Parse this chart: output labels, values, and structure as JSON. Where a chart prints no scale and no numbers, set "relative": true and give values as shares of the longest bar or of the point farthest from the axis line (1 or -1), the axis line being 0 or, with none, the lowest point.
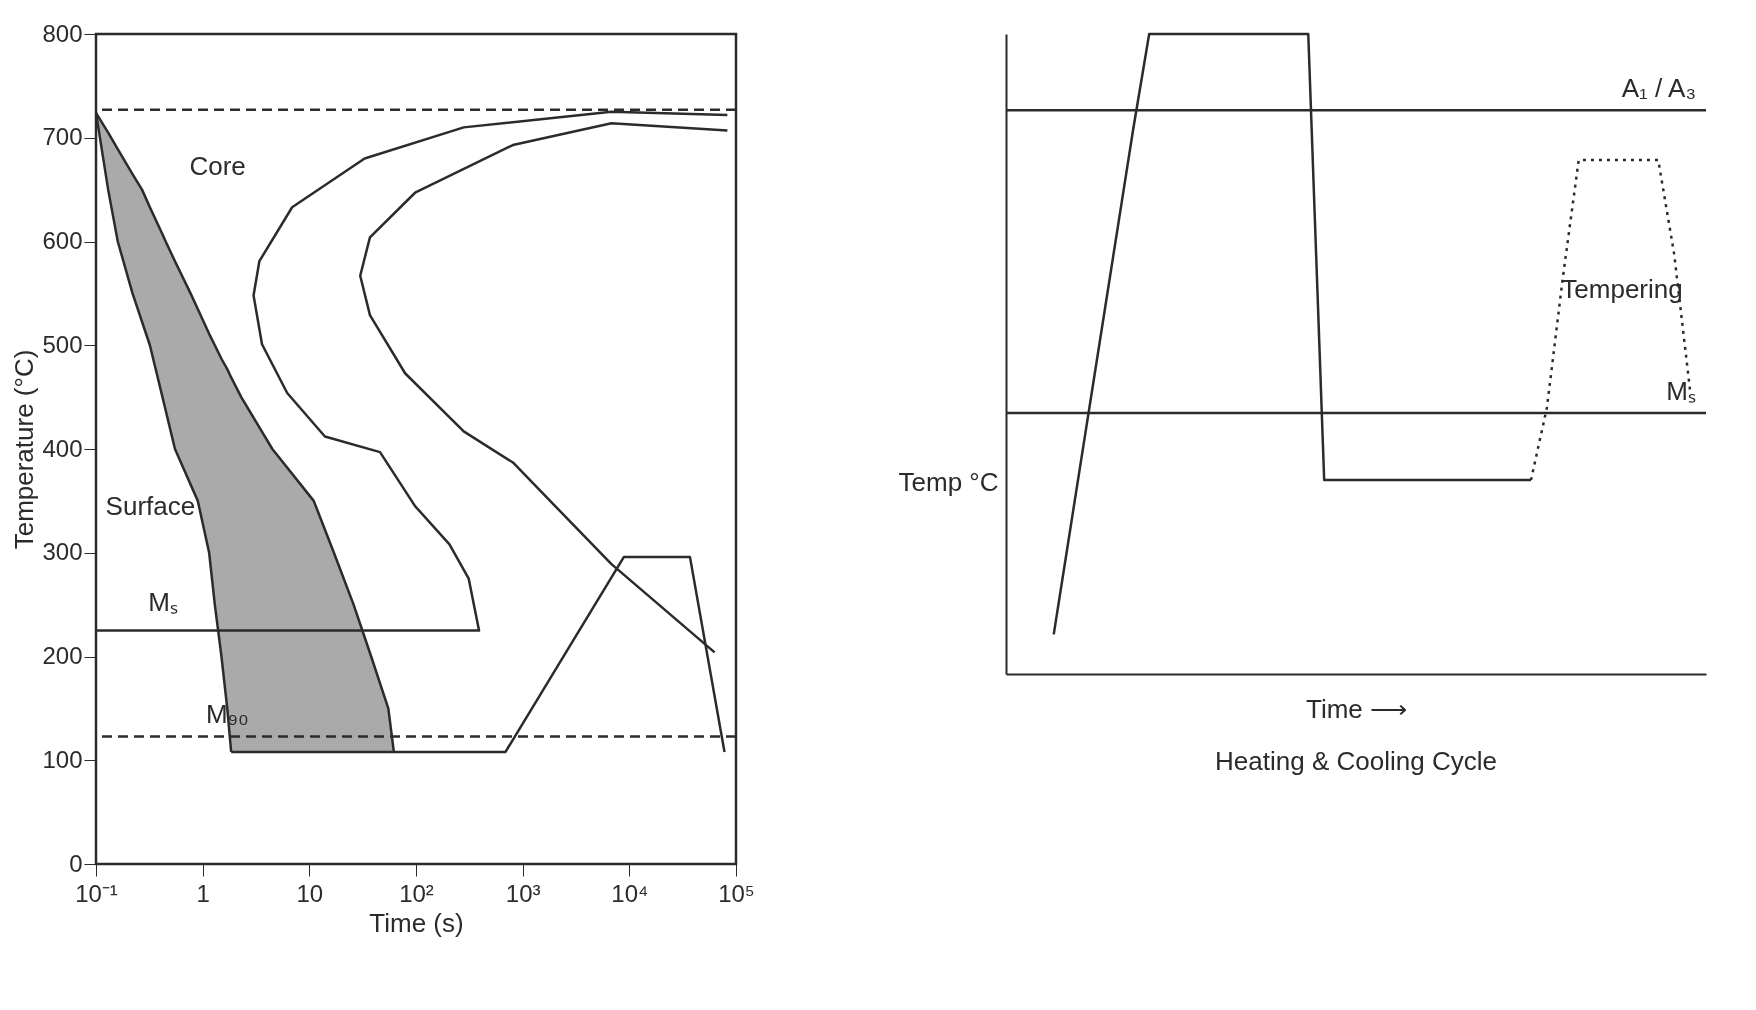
{
  "chart_data": [
    {
      "type": "line",
      "xlabel": "Time (s)",
      "ylabel": "Temperature (°C)",
      "log": "x",
      "xlim": [
        0.1,
        100000
      ],
      "ylim": [
        0,
        800
      ],
      "xticks": [
        {
          "value": 0.1,
          "label": "10⁻¹"
        },
        1,
        10,
        {
          "value": 100,
          "label": "10²"
        },
        {
          "value": 1000,
          "label": "10³"
        },
        {
          "value": 10000,
          "label": "10⁴"
        },
        {
          "value": 100000,
          "label": "10⁵"
        }
      ],
      "yticks": [
        0,
        100,
        200,
        300,
        400,
        500,
        600,
        700,
        800
      ],
      "series": [
        {
          "color": "#2b2b2b",
          "x": [
            0.1,
            0.13,
            0.16,
            0.22,
            0.27,
            0.32,
            0.42,
            0.45,
            0.55,
            0.77,
            0.9,
            1.15,
            1.3,
            1.5,
            1.7,
            1.85,
            2.3,
            4.5,
            11,
            17,
            26,
            38,
            55,
            62
          ],
          "values": [
            724,
            705,
            689,
            665,
            650,
            633,
            607,
            600,
            581,
            550,
            535,
            511,
            500,
            487,
            477,
            469,
            450,
            400,
            350,
            300,
            250,
            200,
            150,
            108
          ],
          "lower": [
            724,
            650,
            600,
            550,
            523,
            500,
            450,
            437,
            400,
            366,
            350,
            300,
            250,
            200,
            150,
            108,
            108,
            108,
            108,
            108,
            108,
            108,
            108,
            108
          ],
          "upper": [
            724,
            705,
            689,
            665,
            650,
            633,
            607,
            600,
            581,
            550,
            535,
            511,
            500,
            487,
            477,
            469,
            450,
            400,
            350,
            300,
            250,
            200,
            150,
            108
          ]
        },
        {
          "color": "#2b2b2b",
          "x": [
            0.1,
            0.13,
            0.16,
            0.22,
            0.32,
            0.42,
            0.55,
            0.9,
            1.15,
            1.3,
            1.5,
            1.7,
            1.85
          ],
          "values": [
            724,
            650,
            600,
            550,
            500,
            450,
            400,
            350,
            300,
            250,
            200,
            150,
            108
          ]
        },
        {
          "color": "#2b2b2b",
          "x": [
            83000,
            6800,
            280,
            33,
            6.9,
            3.4,
            3.0,
            3.6,
            6.2,
            14,
            46,
            98,
            206,
            312,
            390,
            0.1
          ],
          "values": [
            722,
            725,
            710,
            680,
            633,
            581,
            548,
            501,
            454,
            412,
            397,
            345,
            308,
            275,
            225,
            225
          ]
        },
        {
          "color": "#2b2b2b",
          "x": [
            83000,
            6800,
            810,
            98,
            37,
            30,
            37,
            79,
            280,
            810,
            6800,
            63000
          ],
          "values": [
            707,
            714,
            693,
            647,
            604,
            567,
            529,
            473,
            417,
            387,
            289,
            204
          ]
        },
        {
          "color": "#2b2b2b",
          "x": [
            1.85,
            690,
            8900,
            37000,
            78000
          ],
          "values": [
            108,
            108,
            296,
            296,
            108
          ]
        }
      ],
      "ref_lines": [
        {
          "axis": "y",
          "value": 727,
          "line_style": "dashed",
          "color": "#2b2b2b"
        },
        {
          "axis": "y",
          "value": 123,
          "label": "M₉₀",
          "line_style": "dashed",
          "color": "#2b2b2b"
        }
      ],
      "annotations": [
        "Core",
        "Surface",
        "Mₛ"
      ]
    },
    {
      "type": "line",
      "relative": true,
      "xlabel": "Time ⟶",
      "ylabel": "Temp °C",
      "categories": [
        null,
        null,
        null,
        null,
        null,
        null,
        null,
        null,
        null,
        null,
        null,
        null,
        null,
        null,
        null,
        null,
        null,
        null,
        null,
        null,
        null,
        null,
        null,
        null,
        null,
        null,
        null,
        null,
        null,
        null,
        null,
        null,
        null,
        null,
        null,
        null,
        null,
        null,
        null,
        null,
        null,
        null,
        null,
        null,
        null
      ],
      "series": [
        {
          "color": "#2b2b2b",
          "line_style": "solid",
          "values": [
            null,
            null,
            null,
            0.062,
            0.22,
            0.378,
            0.536,
            0.694,
            0.852,
            1,
            1,
            1,
            1,
            1,
            1,
            1,
            1,
            1,
            1,
            1,
            0.303,
            0.303,
            0.303,
            0.303,
            0.303,
            0.303,
            0.303,
            0.303,
            0.303,
            0.303,
            0.303,
            0.303,
            0.303,
            0.303,
            null,
            null,
            null,
            null,
            null,
            null,
            null,
            null,
            null,
            null,
            null
          ]
        },
        {
          "color": "#2b2b2b",
          "line_style": "dotted",
          "values": [
            null,
            null,
            null,
            null,
            null,
            null,
            null,
            null,
            null,
            null,
            null,
            null,
            null,
            null,
            null,
            null,
            null,
            null,
            null,
            null,
            null,
            null,
            null,
            null,
            null,
            null,
            null,
            null,
            null,
            null,
            null,
            null,
            null,
            0.303,
            0.416,
            0.619,
            0.803,
            0.803,
            0.803,
            0.803,
            0.803,
            0.803,
            0.656,
            0.443,
            null
          ]
        }
      ],
      "ref_lines": [
        {
          "axis": "y",
          "value": 0.881,
          "label": "A₁ / A₃",
          "color": "#2b2b2b"
        },
        {
          "axis": "y",
          "value": 0.408,
          "label": "Mₛ",
          "color": "#2b2b2b"
        }
      ],
      "annotations": [
        "Tempering",
        "Heating & Cooling Cycle"
      ]
    }
  ]
}
